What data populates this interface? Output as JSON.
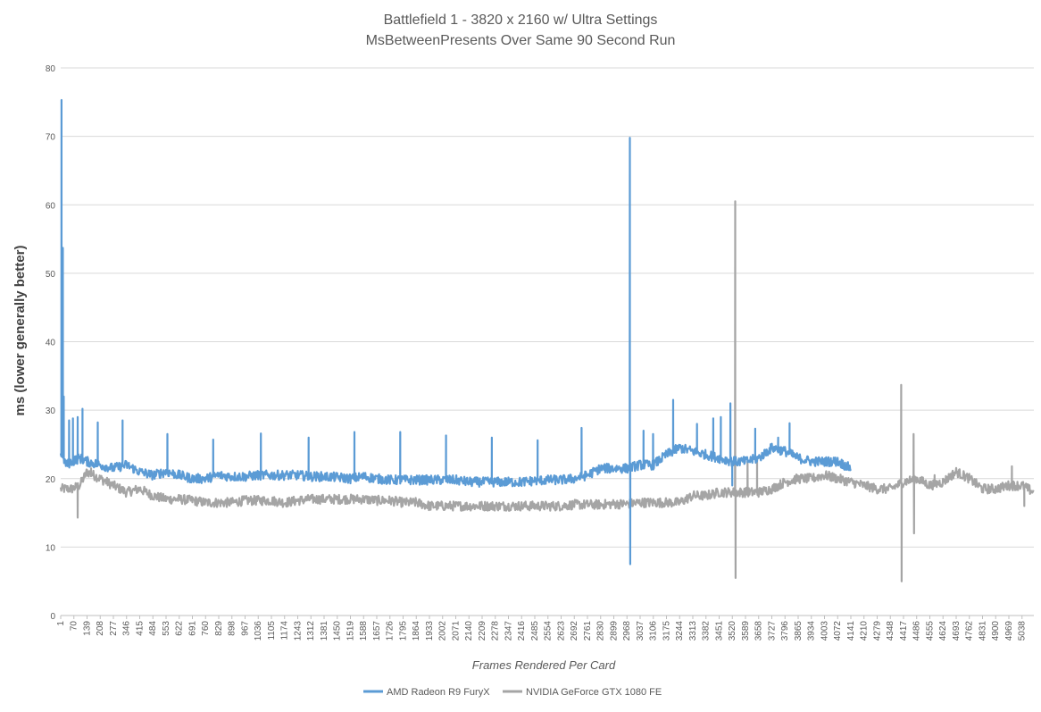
{
  "chart_data": {
    "type": "line",
    "title": "Battlefield 1 - 3820 x 2160 w/ Ultra Settings",
    "subtitle": "MsBetweenPresents Over Same 90 Second Run",
    "xlabel": "Frames Rendered Per Card",
    "ylabel": "ms (lower generally better)",
    "ylim": [
      0,
      80
    ],
    "yticks": [
      0,
      10,
      20,
      30,
      40,
      50,
      60,
      70,
      80
    ],
    "xlim": [
      1,
      5100
    ],
    "xtick_labels": [
      "1",
      "70",
      "139",
      "208",
      "277",
      "346",
      "415",
      "484",
      "553",
      "622",
      "691",
      "760",
      "829",
      "898",
      "967",
      "1036",
      "1105",
      "1174",
      "1243",
      "1312",
      "1381",
      "1450",
      "1519",
      "1588",
      "1657",
      "1726",
      "1795",
      "1864",
      "1933",
      "2002",
      "2071",
      "2140",
      "2209",
      "2278",
      "2347",
      "2416",
      "2485",
      "2554",
      "2623",
      "2692",
      "2761",
      "2830",
      "2899",
      "2968",
      "3037",
      "3106",
      "3175",
      "3244",
      "3313",
      "3382",
      "3451",
      "3520",
      "3589",
      "3658",
      "3727",
      "3796",
      "3865",
      "3934",
      "4003",
      "4072",
      "4141",
      "4210",
      "4279",
      "4348",
      "4417",
      "4486",
      "4555",
      "4624",
      "4693",
      "4762",
      "4831",
      "4900",
      "4969",
      "5038"
    ],
    "grid": "horizontal",
    "legend": "bottom",
    "series": [
      {
        "name": "AMD Radeon R9 FuryX",
        "color": "#5b9bd5",
        "baseline": [
          [
            1,
            24
          ],
          [
            30,
            22
          ],
          [
            60,
            22.5
          ],
          [
            100,
            23
          ],
          [
            139,
            22.5
          ],
          [
            208,
            22
          ],
          [
            277,
            21.5
          ],
          [
            346,
            22
          ],
          [
            415,
            21
          ],
          [
            484,
            20.5
          ],
          [
            553,
            21
          ],
          [
            622,
            20.5
          ],
          [
            691,
            20
          ],
          [
            760,
            20
          ],
          [
            829,
            20.5
          ],
          [
            898,
            20.3
          ],
          [
            967,
            20.3
          ],
          [
            1036,
            20.5
          ],
          [
            1105,
            20.5
          ],
          [
            1174,
            20.5
          ],
          [
            1243,
            20.5
          ],
          [
            1312,
            20.3
          ],
          [
            1381,
            20.3
          ],
          [
            1450,
            20.2
          ],
          [
            1519,
            20
          ],
          [
            1588,
            20.3
          ],
          [
            1657,
            20
          ],
          [
            1726,
            19.8
          ],
          [
            1795,
            19.8
          ],
          [
            1864,
            19.8
          ],
          [
            1933,
            19.8
          ],
          [
            2002,
            19.8
          ],
          [
            2071,
            19.8
          ],
          [
            2140,
            19.5
          ],
          [
            2209,
            19.5
          ],
          [
            2278,
            19.5
          ],
          [
            2347,
            19.5
          ],
          [
            2416,
            19.5
          ],
          [
            2485,
            19.7
          ],
          [
            2554,
            19.8
          ],
          [
            2623,
            19.8
          ],
          [
            2692,
            20
          ],
          [
            2761,
            20.5
          ],
          [
            2830,
            21.5
          ],
          [
            2899,
            21.5
          ],
          [
            2968,
            21.5
          ],
          [
            3037,
            22
          ],
          [
            3106,
            22
          ],
          [
            3175,
            23.5
          ],
          [
            3244,
            24.5
          ],
          [
            3313,
            24
          ],
          [
            3382,
            23.5
          ],
          [
            3451,
            23
          ],
          [
            3520,
            22.5
          ],
          [
            3589,
            22.5
          ],
          [
            3658,
            23
          ],
          [
            3727,
            24.5
          ],
          [
            3796,
            24
          ],
          [
            3865,
            23
          ],
          [
            3934,
            22.5
          ],
          [
            4003,
            22.5
          ],
          [
            4072,
            22.5
          ],
          [
            4141,
            21.5
          ]
        ],
        "spikes": [
          [
            5,
            75.3
          ],
          [
            12,
            53.7
          ],
          [
            17,
            32
          ],
          [
            45,
            28.5
          ],
          [
            65,
            28.8
          ],
          [
            90,
            29
          ],
          [
            115,
            30.2
          ],
          [
            195,
            28.2
          ],
          [
            325,
            28.5
          ],
          [
            560,
            26.5
          ],
          [
            800,
            25.7
          ],
          [
            1050,
            26.6
          ],
          [
            1300,
            26
          ],
          [
            1540,
            26.8
          ],
          [
            1780,
            26.8
          ],
          [
            2020,
            26.3
          ],
          [
            2260,
            26
          ],
          [
            2500,
            25.6
          ],
          [
            2730,
            27.4
          ],
          [
            2983,
            69.8
          ],
          [
            2985,
            7.5
          ],
          [
            3055,
            27
          ],
          [
            3105,
            26.5
          ],
          [
            3210,
            31.5
          ],
          [
            3335,
            28
          ],
          [
            3420,
            28.8
          ],
          [
            3460,
            29
          ],
          [
            3510,
            31
          ],
          [
            3520,
            19
          ],
          [
            3640,
            27.3
          ],
          [
            3760,
            26
          ],
          [
            3820,
            28.1
          ]
        ]
      },
      {
        "name": "NVIDIA GeForce GTX 1080 FE",
        "color": "#a5a5a5",
        "baseline": [
          [
            1,
            18.5
          ],
          [
            60,
            18.5
          ],
          [
            100,
            19
          ],
          [
            139,
            21
          ],
          [
            208,
            20
          ],
          [
            277,
            19
          ],
          [
            346,
            18
          ],
          [
            415,
            18.5
          ],
          [
            484,
            17.5
          ],
          [
            553,
            17
          ],
          [
            622,
            17
          ],
          [
            691,
            16.8
          ],
          [
            760,
            16.5
          ],
          [
            829,
            16.5
          ],
          [
            898,
            16.5
          ],
          [
            967,
            16.8
          ],
          [
            1036,
            16.8
          ],
          [
            1105,
            16.8
          ],
          [
            1174,
            16.5
          ],
          [
            1243,
            16.8
          ],
          [
            1312,
            17
          ],
          [
            1381,
            17
          ],
          [
            1450,
            17
          ],
          [
            1519,
            17
          ],
          [
            1588,
            17
          ],
          [
            1657,
            16.8
          ],
          [
            1726,
            16.8
          ],
          [
            1795,
            16.5
          ],
          [
            1864,
            16.5
          ],
          [
            1933,
            16
          ],
          [
            2002,
            16
          ],
          [
            2071,
            16
          ],
          [
            2140,
            16
          ],
          [
            2209,
            16
          ],
          [
            2278,
            16
          ],
          [
            2347,
            16
          ],
          [
            2416,
            16
          ],
          [
            2485,
            16
          ],
          [
            2554,
            16
          ],
          [
            2623,
            16
          ],
          [
            2692,
            16.2
          ],
          [
            2761,
            16.2
          ],
          [
            2830,
            16.2
          ],
          [
            2899,
            16.3
          ],
          [
            2968,
            16.3
          ],
          [
            3037,
            16.5
          ],
          [
            3106,
            16.5
          ],
          [
            3175,
            16.5
          ],
          [
            3244,
            16.5
          ],
          [
            3313,
            17.5
          ],
          [
            3382,
            17.5
          ],
          [
            3451,
            18
          ],
          [
            3520,
            18
          ],
          [
            3589,
            18
          ],
          [
            3658,
            18
          ],
          [
            3727,
            18.5
          ],
          [
            3796,
            19.5
          ],
          [
            3865,
            20
          ],
          [
            3934,
            20
          ],
          [
            4003,
            20.5
          ],
          [
            4072,
            20
          ],
          [
            4141,
            19.5
          ],
          [
            4210,
            19
          ],
          [
            4279,
            18.5
          ],
          [
            4348,
            18.5
          ],
          [
            4417,
            19.5
          ],
          [
            4486,
            20
          ],
          [
            4555,
            19
          ],
          [
            4624,
            19.5
          ],
          [
            4693,
            21
          ],
          [
            4762,
            20
          ],
          [
            4831,
            18.5
          ],
          [
            4900,
            18.5
          ],
          [
            4969,
            19
          ],
          [
            5038,
            19
          ],
          [
            5100,
            18
          ]
        ],
        "spikes": [
          [
            90,
            14.3
          ],
          [
            160,
            21.5
          ],
          [
            3535,
            60.5
          ],
          [
            3537,
            5.5
          ],
          [
            3600,
            22.5
          ],
          [
            3650,
            22.8
          ],
          [
            4405,
            33.7
          ],
          [
            4407,
            5
          ],
          [
            4470,
            26.5
          ],
          [
            4472,
            12
          ],
          [
            4580,
            20.5
          ],
          [
            4985,
            21.8
          ],
          [
            5050,
            16
          ]
        ]
      }
    ]
  }
}
